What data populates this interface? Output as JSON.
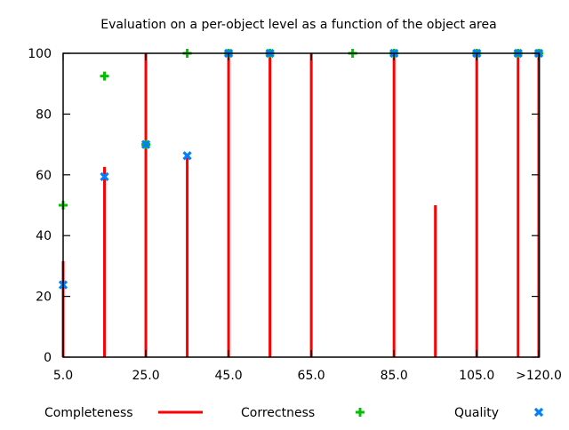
{
  "chart_data": {
    "type": "impulse-points",
    "title": "Evaluation on a per-object level as a function of the object area",
    "xlabel": "",
    "ylabel": "",
    "xlim": [
      5,
      120
    ],
    "ylim": [
      0,
      100
    ],
    "x": [
      5,
      15,
      25,
      35,
      45,
      55,
      65,
      75,
      85,
      95,
      105,
      115,
      120
    ],
    "x_ticks": [
      {
        "value": 5,
        "label": "5.0"
      },
      {
        "value": 25,
        "label": "25.0"
      },
      {
        "value": 45,
        "label": "45.0"
      },
      {
        "value": 65,
        "label": "65.0"
      },
      {
        "value": 85,
        "label": "85.0"
      },
      {
        "value": 105,
        "label": "105.0"
      },
      {
        "value": 120,
        "label": ">120.0"
      }
    ],
    "y_ticks": [
      {
        "value": 0,
        "label": "0"
      },
      {
        "value": 20,
        "label": "20"
      },
      {
        "value": 40,
        "label": "40"
      },
      {
        "value": 60,
        "label": "60"
      },
      {
        "value": 80,
        "label": "80"
      },
      {
        "value": 100,
        "label": "100"
      }
    ],
    "grid": false,
    "legend_position": "bottom",
    "series": [
      {
        "name": "Completeness",
        "style": "impulses",
        "color": "#ff0000",
        "values": [
          31.6,
          62.6,
          100,
          66,
          100,
          100,
          100,
          null,
          100,
          50,
          100,
          100,
          100
        ]
      },
      {
        "name": "Correctness",
        "style": "plus",
        "color": "#00c000",
        "values": [
          50,
          92.5,
          70,
          100,
          100,
          100,
          null,
          100,
          100,
          null,
          100,
          100,
          100
        ]
      },
      {
        "name": "Quality",
        "style": "cross",
        "color": "#0080ff",
        "values": [
          23.8,
          59.4,
          70,
          66.3,
          100,
          100,
          null,
          null,
          100,
          null,
          100,
          100,
          100
        ]
      }
    ]
  }
}
